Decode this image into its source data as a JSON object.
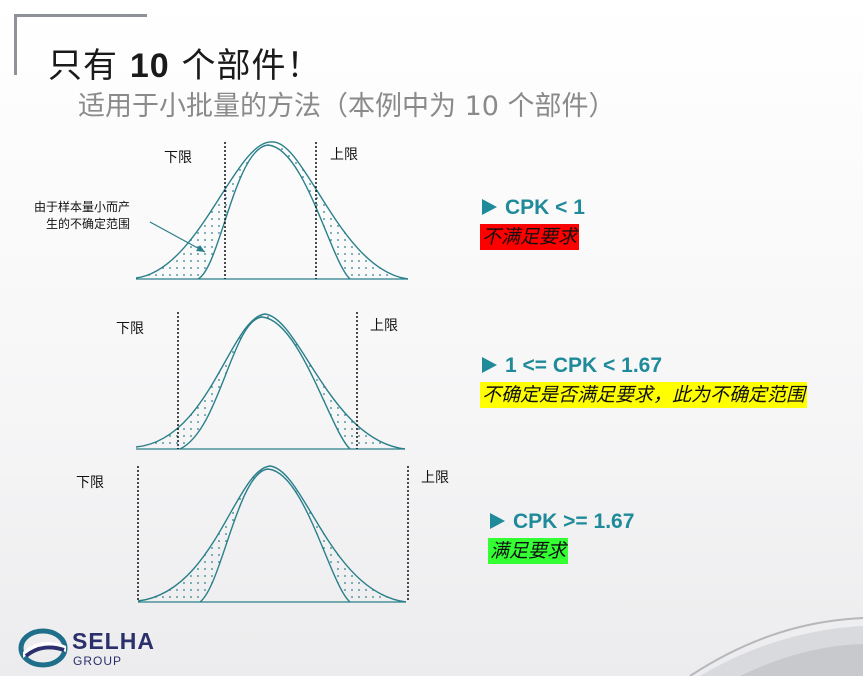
{
  "header": {
    "title_prefix": "只有 ",
    "title_num": "10",
    "title_suffix": " 个部件！",
    "subtitle": "适用于小批量的方法（本例中为 10 个部件）"
  },
  "panels": [
    {
      "lower_label": "下限",
      "upper_label": "上限",
      "note": "由于样本量小而产生的不确定范围",
      "cpk_text": "CPK < 1",
      "verdict": "不满足要求",
      "verdict_color": "#ff0000"
    },
    {
      "lower_label": "下限",
      "upper_label": "上限",
      "cpk_text": "1 <= CPK < 1.67",
      "verdict": "不确定是否满足要求，此为不确定范围",
      "verdict_color": "#ffff00"
    },
    {
      "lower_label": "下限",
      "upper_label": "上限",
      "cpk_text": "CPK >= 1.67",
      "verdict": "满足要求",
      "verdict_color": "#33ff33"
    }
  ],
  "logo": {
    "name": "SELHA",
    "sub": "GROUP"
  },
  "colors": {
    "curve": "#2a7f8a",
    "accent": "#1f8a99"
  }
}
